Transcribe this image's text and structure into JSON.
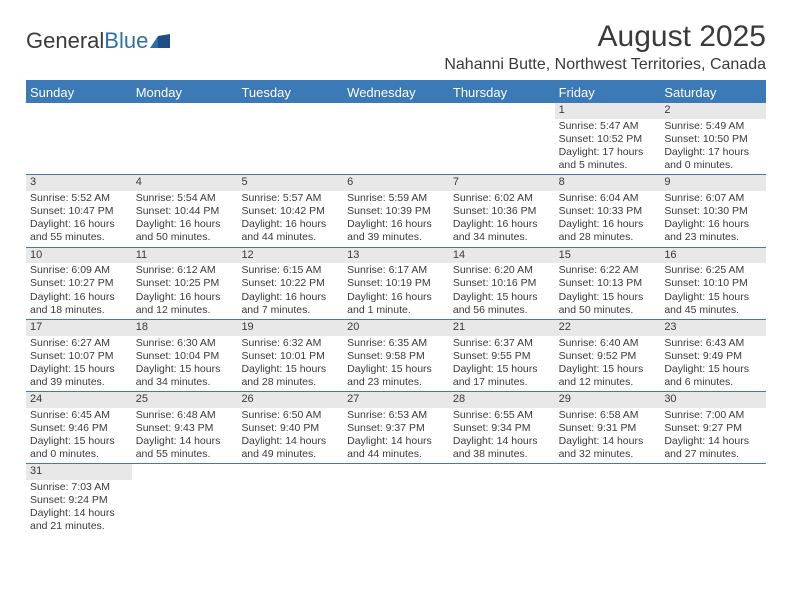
{
  "brand": {
    "general": "General",
    "blue": "Blue"
  },
  "title": "August 2025",
  "location": "Nahanni Butte, Northwest Territories, Canada",
  "colors": {
    "header_bar": "#3b79b7",
    "daynum_bg": "#e8e8e8",
    "text": "#3a3a3a",
    "brand_blue": "#2f6fa8"
  },
  "dow": [
    "Sunday",
    "Monday",
    "Tuesday",
    "Wednesday",
    "Thursday",
    "Friday",
    "Saturday"
  ],
  "weeks": [
    [
      null,
      null,
      null,
      null,
      null,
      {
        "n": "1",
        "sunrise": "Sunrise: 5:47 AM",
        "sunset": "Sunset: 10:52 PM",
        "daylight": "Daylight: 17 hours and 5 minutes."
      },
      {
        "n": "2",
        "sunrise": "Sunrise: 5:49 AM",
        "sunset": "Sunset: 10:50 PM",
        "daylight": "Daylight: 17 hours and 0 minutes."
      }
    ],
    [
      {
        "n": "3",
        "sunrise": "Sunrise: 5:52 AM",
        "sunset": "Sunset: 10:47 PM",
        "daylight": "Daylight: 16 hours and 55 minutes."
      },
      {
        "n": "4",
        "sunrise": "Sunrise: 5:54 AM",
        "sunset": "Sunset: 10:44 PM",
        "daylight": "Daylight: 16 hours and 50 minutes."
      },
      {
        "n": "5",
        "sunrise": "Sunrise: 5:57 AM",
        "sunset": "Sunset: 10:42 PM",
        "daylight": "Daylight: 16 hours and 44 minutes."
      },
      {
        "n": "6",
        "sunrise": "Sunrise: 5:59 AM",
        "sunset": "Sunset: 10:39 PM",
        "daylight": "Daylight: 16 hours and 39 minutes."
      },
      {
        "n": "7",
        "sunrise": "Sunrise: 6:02 AM",
        "sunset": "Sunset: 10:36 PM",
        "daylight": "Daylight: 16 hours and 34 minutes."
      },
      {
        "n": "8",
        "sunrise": "Sunrise: 6:04 AM",
        "sunset": "Sunset: 10:33 PM",
        "daylight": "Daylight: 16 hours and 28 minutes."
      },
      {
        "n": "9",
        "sunrise": "Sunrise: 6:07 AM",
        "sunset": "Sunset: 10:30 PM",
        "daylight": "Daylight: 16 hours and 23 minutes."
      }
    ],
    [
      {
        "n": "10",
        "sunrise": "Sunrise: 6:09 AM",
        "sunset": "Sunset: 10:27 PM",
        "daylight": "Daylight: 16 hours and 18 minutes."
      },
      {
        "n": "11",
        "sunrise": "Sunrise: 6:12 AM",
        "sunset": "Sunset: 10:25 PM",
        "daylight": "Daylight: 16 hours and 12 minutes."
      },
      {
        "n": "12",
        "sunrise": "Sunrise: 6:15 AM",
        "sunset": "Sunset: 10:22 PM",
        "daylight": "Daylight: 16 hours and 7 minutes."
      },
      {
        "n": "13",
        "sunrise": "Sunrise: 6:17 AM",
        "sunset": "Sunset: 10:19 PM",
        "daylight": "Daylight: 16 hours and 1 minute."
      },
      {
        "n": "14",
        "sunrise": "Sunrise: 6:20 AM",
        "sunset": "Sunset: 10:16 PM",
        "daylight": "Daylight: 15 hours and 56 minutes."
      },
      {
        "n": "15",
        "sunrise": "Sunrise: 6:22 AM",
        "sunset": "Sunset: 10:13 PM",
        "daylight": "Daylight: 15 hours and 50 minutes."
      },
      {
        "n": "16",
        "sunrise": "Sunrise: 6:25 AM",
        "sunset": "Sunset: 10:10 PM",
        "daylight": "Daylight: 15 hours and 45 minutes."
      }
    ],
    [
      {
        "n": "17",
        "sunrise": "Sunrise: 6:27 AM",
        "sunset": "Sunset: 10:07 PM",
        "daylight": "Daylight: 15 hours and 39 minutes."
      },
      {
        "n": "18",
        "sunrise": "Sunrise: 6:30 AM",
        "sunset": "Sunset: 10:04 PM",
        "daylight": "Daylight: 15 hours and 34 minutes."
      },
      {
        "n": "19",
        "sunrise": "Sunrise: 6:32 AM",
        "sunset": "Sunset: 10:01 PM",
        "daylight": "Daylight: 15 hours and 28 minutes."
      },
      {
        "n": "20",
        "sunrise": "Sunrise: 6:35 AM",
        "sunset": "Sunset: 9:58 PM",
        "daylight": "Daylight: 15 hours and 23 minutes."
      },
      {
        "n": "21",
        "sunrise": "Sunrise: 6:37 AM",
        "sunset": "Sunset: 9:55 PM",
        "daylight": "Daylight: 15 hours and 17 minutes."
      },
      {
        "n": "22",
        "sunrise": "Sunrise: 6:40 AM",
        "sunset": "Sunset: 9:52 PM",
        "daylight": "Daylight: 15 hours and 12 minutes."
      },
      {
        "n": "23",
        "sunrise": "Sunrise: 6:43 AM",
        "sunset": "Sunset: 9:49 PM",
        "daylight": "Daylight: 15 hours and 6 minutes."
      }
    ],
    [
      {
        "n": "24",
        "sunrise": "Sunrise: 6:45 AM",
        "sunset": "Sunset: 9:46 PM",
        "daylight": "Daylight: 15 hours and 0 minutes."
      },
      {
        "n": "25",
        "sunrise": "Sunrise: 6:48 AM",
        "sunset": "Sunset: 9:43 PM",
        "daylight": "Daylight: 14 hours and 55 minutes."
      },
      {
        "n": "26",
        "sunrise": "Sunrise: 6:50 AM",
        "sunset": "Sunset: 9:40 PM",
        "daylight": "Daylight: 14 hours and 49 minutes."
      },
      {
        "n": "27",
        "sunrise": "Sunrise: 6:53 AM",
        "sunset": "Sunset: 9:37 PM",
        "daylight": "Daylight: 14 hours and 44 minutes."
      },
      {
        "n": "28",
        "sunrise": "Sunrise: 6:55 AM",
        "sunset": "Sunset: 9:34 PM",
        "daylight": "Daylight: 14 hours and 38 minutes."
      },
      {
        "n": "29",
        "sunrise": "Sunrise: 6:58 AM",
        "sunset": "Sunset: 9:31 PM",
        "daylight": "Daylight: 14 hours and 32 minutes."
      },
      {
        "n": "30",
        "sunrise": "Sunrise: 7:00 AM",
        "sunset": "Sunset: 9:27 PM",
        "daylight": "Daylight: 14 hours and 27 minutes."
      }
    ],
    [
      {
        "n": "31",
        "sunrise": "Sunrise: 7:03 AM",
        "sunset": "Sunset: 9:24 PM",
        "daylight": "Daylight: 14 hours and 21 minutes."
      },
      null,
      null,
      null,
      null,
      null,
      null
    ]
  ]
}
